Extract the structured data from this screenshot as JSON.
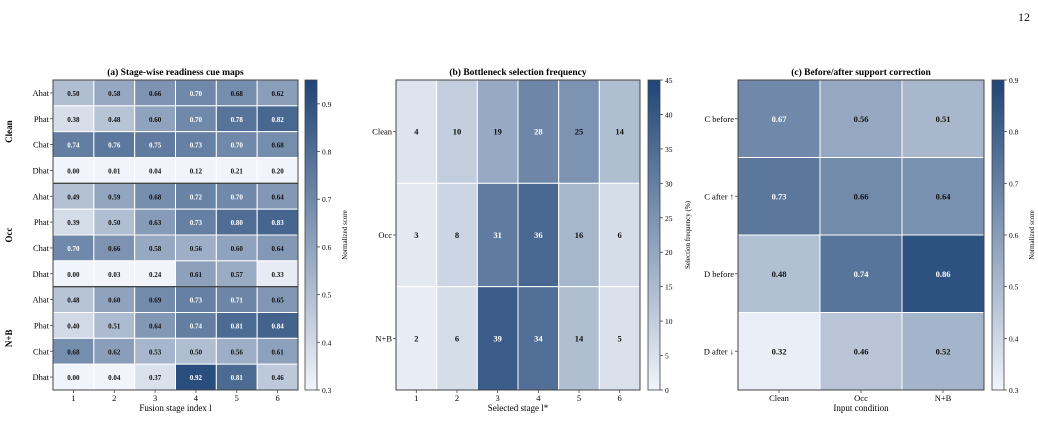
{
  "page_number": "12",
  "colors": {
    "low": "#f1f4fa",
    "high": "#1f4577",
    "border": "#444444",
    "light_text": "#ffffff",
    "dark_text": "#111111"
  },
  "chart_data": [
    {
      "type": "heatmap",
      "title": "(a) Stage-wise readiness cue maps",
      "xlabel": "Fusion stage index l",
      "ylabel": "",
      "x": [
        "1",
        "2",
        "3",
        "4",
        "5",
        "6"
      ],
      "groups": [
        {
          "name": "Clean",
          "rows": [
            "Ahat",
            "Phat",
            "Chat",
            "Dhat"
          ]
        },
        {
          "name": "Occ",
          "rows": [
            "Ahat",
            "Phat",
            "Chat",
            "Dhat"
          ]
        },
        {
          "name": "N+B",
          "rows": [
            "Ahat",
            "Phat",
            "Chat",
            "Dhat"
          ]
        }
      ],
      "values": [
        [
          0.5,
          0.58,
          0.66,
          0.7,
          0.68,
          0.62
        ],
        [
          0.38,
          0.48,
          0.6,
          0.7,
          0.78,
          0.82
        ],
        [
          0.74,
          0.76,
          0.75,
          0.73,
          0.7,
          0.68
        ],
        [
          0.0,
          0.01,
          0.04,
          0.12,
          0.21,
          0.2
        ],
        [
          0.49,
          0.59,
          0.68,
          0.72,
          0.7,
          0.64
        ],
        [
          0.39,
          0.5,
          0.63,
          0.73,
          0.8,
          0.83
        ],
        [
          0.7,
          0.66,
          0.58,
          0.56,
          0.6,
          0.64
        ],
        [
          0.0,
          0.03,
          0.24,
          0.61,
          0.57,
          0.33
        ],
        [
          0.48,
          0.6,
          0.69,
          0.73,
          0.71,
          0.65
        ],
        [
          0.4,
          0.51,
          0.64,
          0.74,
          0.81,
          0.84
        ],
        [
          0.68,
          0.62,
          0.53,
          0.5,
          0.56,
          0.61
        ],
        [
          0.0,
          0.04,
          0.37,
          0.92,
          0.81,
          0.46
        ]
      ],
      "colorbar": {
        "label": "Normalized score",
        "range": [
          0.3,
          0.95
        ],
        "ticks": [
          "0.3",
          "0.4",
          "0.5",
          "0.6",
          "0.7",
          "0.8",
          "0.9"
        ]
      }
    },
    {
      "type": "heatmap",
      "title": "(b) Bottleneck selection frequency",
      "xlabel": "Selected stage l*",
      "ylabel": "",
      "x": [
        "1",
        "2",
        "3",
        "4",
        "5",
        "6"
      ],
      "rows": [
        "Clean",
        "Occ",
        "N+B"
      ],
      "values": [
        [
          4,
          10,
          19,
          28,
          25,
          14
        ],
        [
          3,
          8,
          31,
          36,
          16,
          6
        ],
        [
          2,
          6,
          39,
          34,
          14,
          5
        ]
      ],
      "colorbar": {
        "label": "Selection frequency (%)",
        "range": [
          0,
          45
        ],
        "ticks": [
          "0",
          "5",
          "10",
          "15",
          "20",
          "25",
          "30",
          "35",
          "40",
          "45"
        ]
      }
    },
    {
      "type": "heatmap",
      "title": "(c) Before/after support correction",
      "xlabel": "Input condition",
      "ylabel": "",
      "x": [
        "Clean",
        "Occ",
        "N+B"
      ],
      "rows": [
        "C before",
        "C after ↑",
        "D before",
        "D after ↓"
      ],
      "values": [
        [
          0.67,
          0.56,
          0.51
        ],
        [
          0.73,
          0.66,
          0.64
        ],
        [
          0.48,
          0.74,
          0.86
        ],
        [
          0.32,
          0.46,
          0.52
        ]
      ],
      "colorbar": {
        "label": "Normalized score",
        "range": [
          0.3,
          0.9
        ],
        "ticks": [
          "0.3",
          "0.4",
          "0.5",
          "0.6",
          "0.7",
          "0.8",
          "0.9"
        ]
      }
    }
  ]
}
